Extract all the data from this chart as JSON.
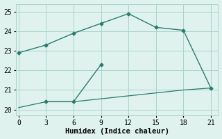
{
  "line1_x": [
    0,
    3,
    6,
    9,
    12,
    15,
    18,
    21
  ],
  "line1_y": [
    22.9,
    23.3,
    23.9,
    24.4,
    24.9,
    24.2,
    24.05,
    21.1
  ],
  "line2_x": [
    0,
    3,
    6,
    9,
    12,
    15,
    18,
    21
  ],
  "line2_y": [
    20.1,
    20.4,
    20.4,
    20.55,
    20.7,
    20.85,
    21.0,
    21.1
  ],
  "line3_x": [
    3,
    6,
    9
  ],
  "line3_y": [
    20.4,
    20.4,
    22.3
  ],
  "color": "#2a7b6f",
  "bg_color": "#dff2ee",
  "grid_color": "#aad4cc",
  "xlabel": "Humidex (Indice chaleur)",
  "xticks": [
    0,
    3,
    6,
    9,
    12,
    15,
    18,
    21
  ],
  "yticks": [
    20,
    21,
    22,
    23,
    24,
    25
  ],
  "xlim": [
    -0.3,
    21.8
  ],
  "ylim": [
    19.7,
    25.4
  ]
}
